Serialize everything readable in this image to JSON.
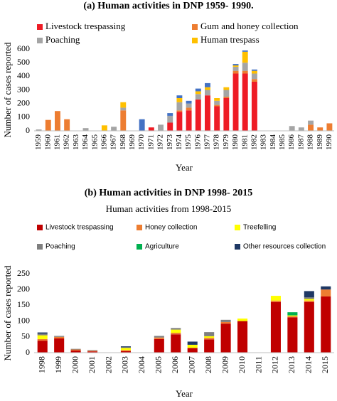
{
  "chart_data": [
    {
      "type": "bar",
      "stacked": true,
      "title": "(a)  Human activities in DNP 1959- 1990.",
      "x_label": "Year",
      "y_label": "Number of cases reported",
      "categories": [
        "1959",
        "1960",
        "1961",
        "1962",
        "1963",
        "1964",
        "1965",
        "1966",
        "1967",
        "1968",
        "1969",
        "1970",
        "1971",
        "1972",
        "1973",
        "1974",
        "1975",
        "1976",
        "1977",
        "1978",
        "1979",
        "1980",
        "1981",
        "1982",
        "1983",
        "1984",
        "1985",
        "1986",
        "1987",
        "1988",
        "1989",
        "1990"
      ],
      "series": [
        {
          "name": "Livestock trespassing",
          "color": "#ee1c25",
          "values": [
            0,
            0,
            0,
            0,
            0,
            0,
            0,
            0,
            0,
            0,
            0,
            0,
            25,
            0,
            60,
            140,
            150,
            230,
            260,
            180,
            240,
            420,
            420,
            360,
            0,
            0,
            0,
            0,
            0,
            0,
            0,
            0
          ]
        },
        {
          "name": "Gum and honey collection",
          "color": "#ed7d31",
          "values": [
            0,
            80,
            145,
            85,
            0,
            0,
            0,
            0,
            0,
            150,
            0,
            0,
            0,
            0,
            0,
            10,
            20,
            0,
            0,
            10,
            10,
            20,
            20,
            20,
            0,
            0,
            0,
            0,
            0,
            45,
            25,
            55
          ]
        },
        {
          "name": "Poaching",
          "color": "#a5a5a5",
          "values": [
            10,
            0,
            0,
            0,
            0,
            20,
            0,
            0,
            30,
            20,
            0,
            0,
            0,
            45,
            50,
            60,
            30,
            40,
            40,
            30,
            50,
            30,
            60,
            40,
            0,
            0,
            0,
            35,
            25,
            30,
            0,
            0
          ]
        },
        {
          "name": "Human trespass",
          "color": "#ffc000",
          "values": [
            0,
            0,
            0,
            0,
            0,
            0,
            0,
            40,
            0,
            40,
            0,
            0,
            0,
            0,
            0,
            30,
            0,
            20,
            20,
            20,
            20,
            10,
            80,
            20,
            0,
            0,
            0,
            0,
            0,
            0,
            0,
            0
          ]
        },
        {
          "color": "#4472c4",
          "values": [
            0,
            0,
            0,
            0,
            0,
            0,
            0,
            0,
            0,
            0,
            0,
            85,
            0,
            0,
            20,
            20,
            20,
            20,
            30,
            0,
            0,
            10,
            10,
            10,
            0,
            0,
            0,
            0,
            0,
            0,
            0,
            0
          ]
        }
      ],
      "ylim": [
        0,
        600
      ],
      "yticks": [
        0,
        100,
        200,
        300,
        400,
        500,
        600
      ],
      "grid": false
    },
    {
      "type": "bar",
      "stacked": true,
      "title": "(b)  Human activities in DNP 1998- 2015",
      "subtitle": "Human activities  from 1998-2015",
      "x_label": "Year",
      "y_label": "Number of cases reported",
      "categories": [
        "1998",
        "1999",
        "2000",
        "2001",
        "2002",
        "2003",
        "2004",
        "2005",
        "2006",
        "2007",
        "2008",
        "2009",
        "2010",
        "2011",
        "2012",
        "2013",
        "2014",
        "2015"
      ],
      "series": [
        {
          "name": "Livestock trespassing",
          "color": "#c00000",
          "values": [
            38,
            45,
            7,
            4,
            0,
            5,
            0,
            43,
            58,
            15,
            42,
            92,
            100,
            0,
            160,
            112,
            160,
            178
          ]
        },
        {
          "name": "Honey collection",
          "color": "#ed7d31",
          "values": [
            5,
            5,
            3,
            2,
            0,
            3,
            0,
            5,
            5,
            0,
            5,
            5,
            0,
            0,
            5,
            3,
            5,
            22
          ]
        },
        {
          "name": "Treefelling",
          "color": "#ffff00",
          "values": [
            12,
            0,
            0,
            0,
            0,
            7,
            0,
            0,
            10,
            10,
            5,
            0,
            8,
            0,
            15,
            3,
            5,
            0
          ]
        },
        {
          "name": "Poaching",
          "color": "#7f7f7f",
          "values": [
            5,
            3,
            2,
            2,
            0,
            2,
            0,
            5,
            5,
            0,
            13,
            7,
            0,
            0,
            0,
            0,
            5,
            0
          ]
        },
        {
          "name": "Agriculture",
          "color": "#00b050",
          "values": [
            0,
            0,
            0,
            0,
            0,
            0,
            0,
            0,
            0,
            0,
            0,
            0,
            0,
            0,
            0,
            10,
            0,
            0
          ]
        },
        {
          "name": "Other resources collection",
          "color": "#1f3864",
          "values": [
            4,
            0,
            0,
            0,
            0,
            3,
            0,
            0,
            0,
            10,
            0,
            0,
            0,
            0,
            0,
            0,
            20,
            10
          ]
        }
      ],
      "ylim": [
        0,
        250
      ],
      "yticks": [
        0,
        50,
        100,
        150,
        200,
        250
      ],
      "grid": false
    }
  ]
}
